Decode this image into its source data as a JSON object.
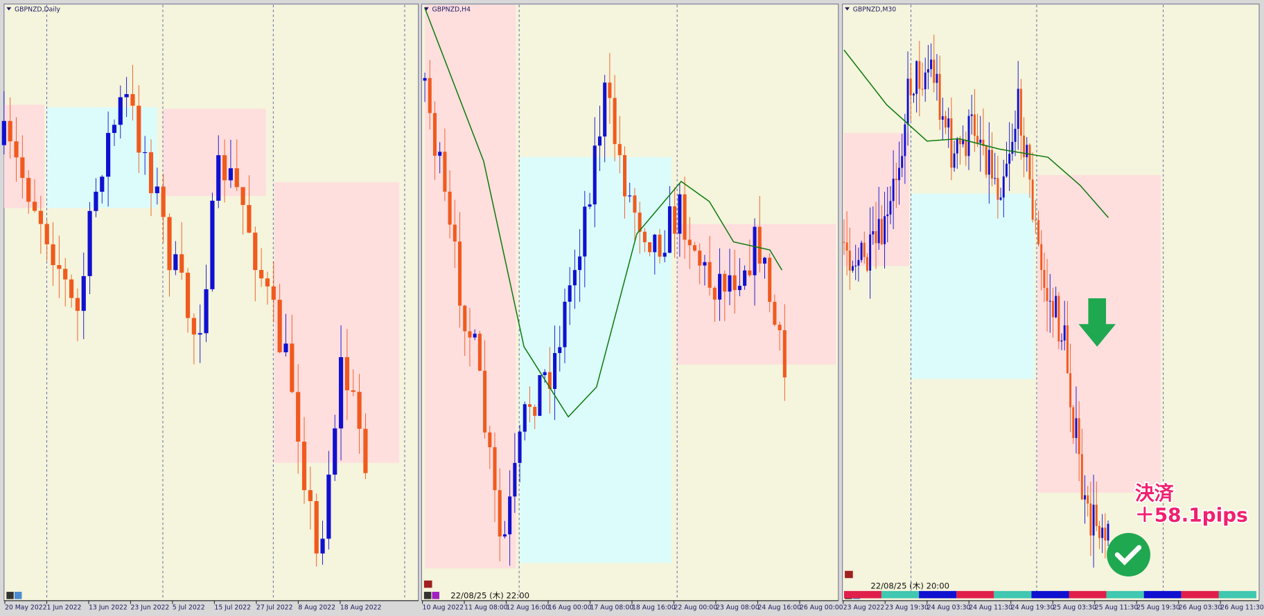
{
  "panels": [
    {
      "title": "GBPNZD,Daily",
      "x_labels": [
        "20 May 2022",
        "1 Jun 2022",
        "13 Jun 2022",
        "23 Jun 2022",
        "5 Jul 2022",
        "15 Jul 2022",
        "27 Jul 2022",
        "8 Aug 2022",
        "18 Aug 2022"
      ]
    },
    {
      "title": "GBPNZD,H4",
      "timestamp": "22/08/25 (木) 22:00",
      "x_labels": [
        "10 Aug 2022",
        "11 Aug 08:00",
        "12 Aug 16:00",
        "16 Aug 00:00",
        "17 Aug 08:00",
        "18 Aug 16:00",
        "22 Aug 00:00",
        "23 Aug 08:00",
        "24 Aug 16:00",
        "26 Aug 00:00"
      ]
    },
    {
      "title": "GBPNZD,M30",
      "timestamp": "22/08/25 (木) 20:00",
      "x_labels": [
        "23 Aug 2022",
        "23 Aug 19:30",
        "24 Aug 03:30",
        "24 Aug 11:30",
        "24 Aug 19:30",
        "25 Aug 03:30",
        "25 Aug 11:30",
        "25 Aug 19:30",
        "26 Aug 03:30",
        "26 Aug 11:30"
      ],
      "annotation": [
        "決済",
        "＋58.1pips"
      ]
    }
  ]
}
